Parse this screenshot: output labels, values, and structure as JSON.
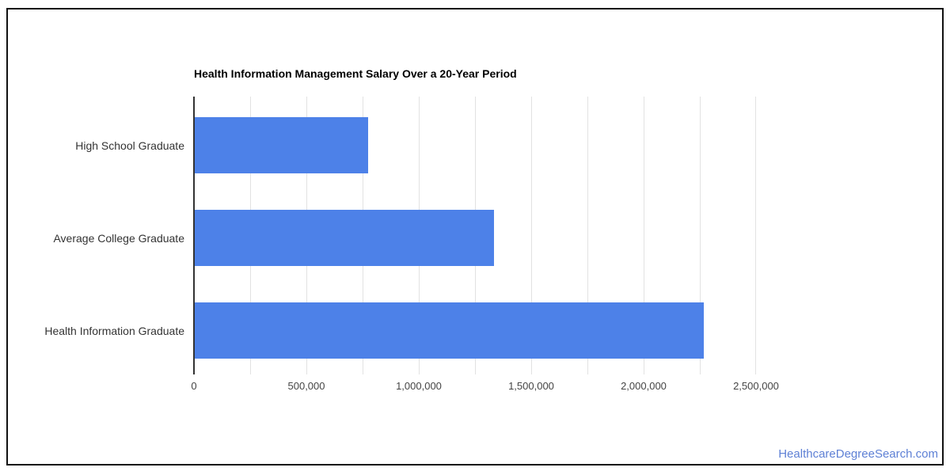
{
  "chart_data": {
    "type": "bar",
    "orientation": "horizontal",
    "title": "Health Information Management Salary Over a 20-Year Period",
    "categories": [
      "High School Graduate",
      "Average College Graduate",
      "Health Information Graduate"
    ],
    "values": [
      770000,
      1330000,
      2265000
    ],
    "xlabel": "",
    "ylabel": "",
    "xlim": [
      0,
      2500000
    ],
    "x_major_tick_step": 500000,
    "x_minor_gridline_step": 250000,
    "x_tick_labels": [
      "0",
      "500,000",
      "1,000,000",
      "1,500,000",
      "2,000,000",
      "2,500,000"
    ],
    "grid": true,
    "legend": "none"
  },
  "colors": {
    "bar": "#4D81E8",
    "gridline": "#e2e2e2",
    "axis": "#333333",
    "title": "#000000",
    "category_labels": "#333333",
    "tick_labels": "#444444",
    "frame_border": "#111111",
    "link": "#5E80D5"
  },
  "footer": {
    "link_label": "HealthcareDegreeSearch.com"
  }
}
